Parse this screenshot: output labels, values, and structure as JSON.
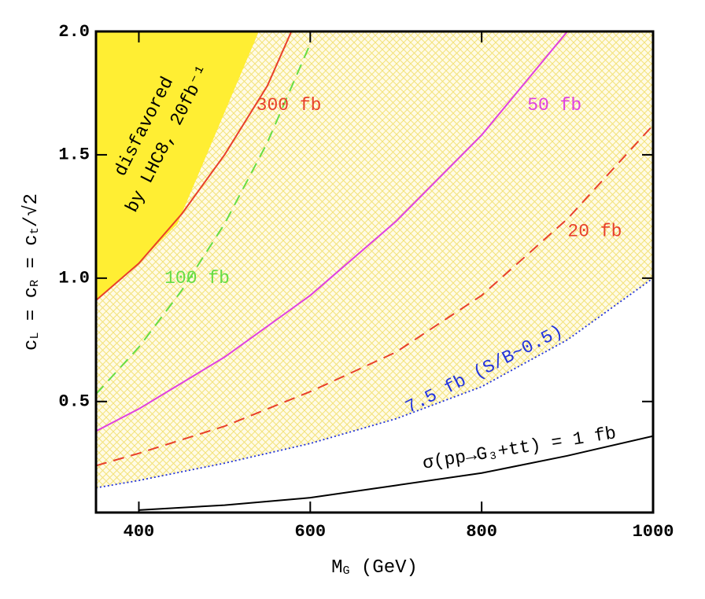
{
  "chart_data": {
    "type": "line",
    "xlabel": [
      "M",
      "G",
      " (GeV)"
    ],
    "ylabel": [
      "c",
      "L",
      " = c",
      "R",
      " = c",
      "t",
      "/√2"
    ],
    "xlim": [
      350,
      1000
    ],
    "ylim": [
      0.05,
      2.0
    ],
    "xticks": [
      400,
      600,
      800,
      1000
    ],
    "yticks": [
      0.5,
      {
        "value": 1.0,
        "label": "1.0"
      },
      1.5,
      {
        "value": 2.0,
        "label": "2.0"
      }
    ],
    "series": [
      {
        "name": "300 fb",
        "color": "#e8402a",
        "style": "solid",
        "x": [
          350,
          400,
          450,
          500,
          550,
          578
        ],
        "values": [
          0.91,
          1.06,
          1.26,
          1.5,
          1.78,
          2.0
        ]
      },
      {
        "name": "100 fb",
        "color": "#66dd44",
        "style": "dashed",
        "x": [
          350,
          400,
          450,
          500,
          550,
          600
        ],
        "values": [
          0.53,
          0.72,
          0.95,
          1.22,
          1.55,
          1.95
        ]
      },
      {
        "name": "50 fb",
        "color": "#e040e0",
        "style": "solid",
        "x": [
          350,
          400,
          500,
          600,
          700,
          800,
          900
        ],
        "values": [
          0.38,
          0.47,
          0.68,
          0.93,
          1.23,
          1.58,
          2.0
        ]
      },
      {
        "name": "20 fb",
        "color": "#e8402a",
        "style": "dashed",
        "x": [
          350,
          400,
          500,
          600,
          700,
          800,
          900,
          1000
        ],
        "values": [
          0.24,
          0.29,
          0.4,
          0.54,
          0.7,
          0.93,
          1.24,
          1.62
        ]
      },
      {
        "name": "7.5 fb (S/B~0.5)",
        "color": "#2233dd",
        "style": "dotted",
        "x": [
          350,
          400,
          500,
          600,
          700,
          800,
          900,
          1000
        ],
        "values": [
          0.15,
          0.18,
          0.25,
          0.33,
          0.43,
          0.56,
          0.75,
          1.0
        ]
      },
      {
        "name": "σ(pp→G₃+tt) = 1 fb",
        "color": "#000000",
        "style": "solid",
        "x": [
          400,
          500,
          600,
          700,
          800,
          900,
          1000
        ],
        "values": [
          0.06,
          0.08,
          0.11,
          0.16,
          0.21,
          0.28,
          0.36
        ]
      }
    ],
    "disfavored_region": {
      "color": "#ffee33",
      "x": [
        350,
        540,
        445,
        400,
        350
      ],
      "values": [
        2.0,
        2.0,
        1.22,
        1.06,
        0.91
      ]
    },
    "annotation": [
      "disfavored",
      "by LHC8, 20fb⁻¹"
    ],
    "hatch_color": "#f3e27a"
  }
}
